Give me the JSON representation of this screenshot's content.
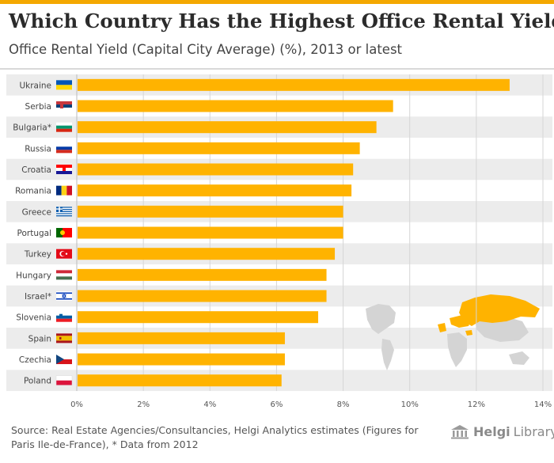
{
  "title": "Which Country Has the Highest Office Rental Yield?",
  "subtitle": "Office Rental Yield (Capital City Average) (%), 2013 or latest",
  "source": "Source: Real Estate Agencies/Consultancies, Helgi Analytics estimates (Figures for Paris Ile-de-France), * Data from 2012",
  "logo": {
    "name": "Helgi",
    "suffix": "Library.",
    "icon": "library-columns-icon"
  },
  "colors": {
    "accent": "#f4a800",
    "bar": "#ffb300",
    "map_highlight": "#ffb300",
    "map_land": "#d4d4d4",
    "band": "#ececec"
  },
  "chart_data": {
    "type": "bar",
    "orientation": "horizontal",
    "title": "Which Country Has the Highest Office Rental Yield?",
    "subtitle": "Office Rental Yield (Capital City Average) (%), 2013 or latest",
    "categories": [
      "Ukraine",
      "Serbia",
      "Bulgaria*",
      "Russia",
      "Croatia",
      "Romania",
      "Greece",
      "Portugal",
      "Turkey",
      "Hungary",
      "Israel*",
      "Slovenia",
      "Spain",
      "Czechia",
      "Poland"
    ],
    "flags": [
      "ukraine-flag-icon",
      "serbia-flag-icon",
      "bulgaria-flag-icon",
      "russia-flag-icon",
      "croatia-flag-icon",
      "romania-flag-icon",
      "greece-flag-icon",
      "portugal-flag-icon",
      "turkey-flag-icon",
      "hungary-flag-icon",
      "israel-flag-icon",
      "slovenia-flag-icon",
      "spain-flag-icon",
      "czechia-flag-icon",
      "poland-flag-icon"
    ],
    "values": [
      13.0,
      9.5,
      9.0,
      8.5,
      8.3,
      8.25,
      8.0,
      8.0,
      7.75,
      7.5,
      7.5,
      7.25,
      6.25,
      6.25,
      6.15
    ],
    "unit": "%",
    "xlim": [
      0,
      14
    ],
    "xticks": [
      "0%",
      "2%",
      "4%",
      "6%",
      "8%",
      "10%",
      "12%",
      "14%"
    ],
    "grid": true
  }
}
